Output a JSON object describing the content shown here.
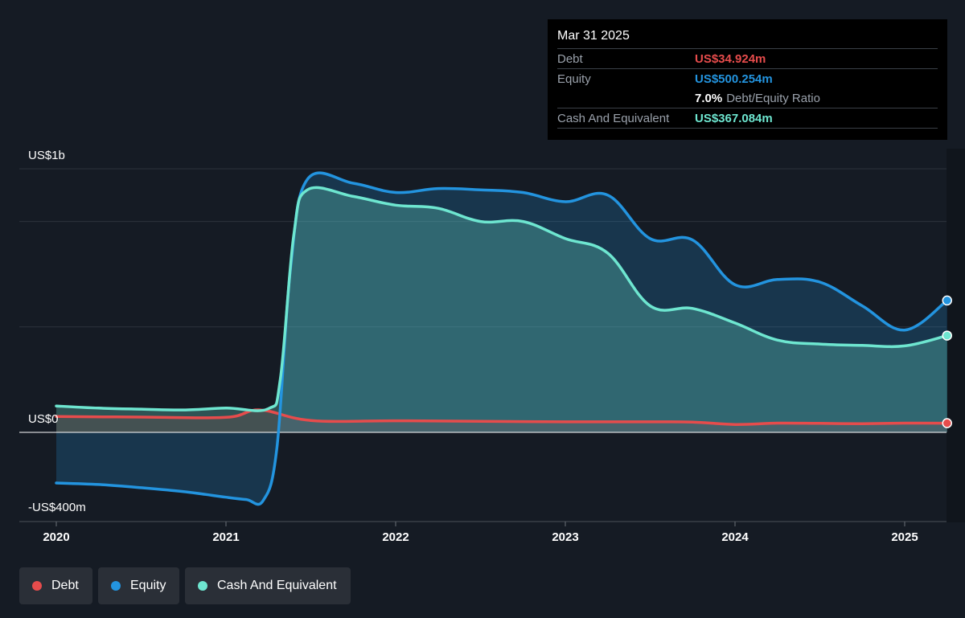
{
  "tooltip": {
    "date": "Mar 31 2025",
    "debt_label": "Debt",
    "debt_value": "US$34.924m",
    "equity_label": "Equity",
    "equity_value": "US$500.254m",
    "ratio_value": "7.0%",
    "ratio_label": "Debt/Equity Ratio",
    "cash_label": "Cash And Equivalent",
    "cash_value": "US$367.084m"
  },
  "legend": [
    {
      "label": "Debt",
      "color": "#e64c4c"
    },
    {
      "label": "Equity",
      "color": "#2394df"
    },
    {
      "label": "Cash And Equivalent",
      "color": "#6ee6d0"
    }
  ],
  "chart_data": {
    "type": "area",
    "y_tick_labels": [
      "US$1b",
      "US$0",
      "-US$400m"
    ],
    "ylim": [
      -400,
      1000
    ],
    "x_ticks": [
      2020,
      2021,
      2022,
      2023,
      2024,
      2025
    ],
    "x_tick_labels": [
      "2020",
      "2021",
      "2022",
      "2023",
      "2024",
      "2025"
    ],
    "xlim": [
      2019.8,
      2025.25
    ],
    "grid": true,
    "series": [
      {
        "name": "Debt",
        "color": "#e64c4c",
        "points": [
          [
            2020.0,
            60
          ],
          [
            2020.5,
            58
          ],
          [
            2021.0,
            57
          ],
          [
            2021.2,
            85
          ],
          [
            2021.5,
            45
          ],
          [
            2022.0,
            44
          ],
          [
            2022.5,
            42
          ],
          [
            2023.0,
            40
          ],
          [
            2023.5,
            40
          ],
          [
            2023.75,
            39
          ],
          [
            2024.0,
            30
          ],
          [
            2024.25,
            35
          ],
          [
            2024.5,
            34
          ],
          [
            2024.75,
            33
          ],
          [
            2025.0,
            35
          ],
          [
            2025.25,
            34.9
          ]
        ]
      },
      {
        "name": "Equity",
        "color": "#2394df",
        "points": [
          [
            2020.0,
            -192
          ],
          [
            2020.25,
            -198
          ],
          [
            2020.5,
            -210
          ],
          [
            2020.75,
            -225
          ],
          [
            2021.0,
            -246
          ],
          [
            2021.12,
            -255
          ],
          [
            2021.22,
            -258
          ],
          [
            2021.3,
            -60
          ],
          [
            2021.38,
            620
          ],
          [
            2021.48,
            960
          ],
          [
            2021.75,
            945
          ],
          [
            2022.0,
            910
          ],
          [
            2022.25,
            925
          ],
          [
            2022.5,
            920
          ],
          [
            2022.75,
            910
          ],
          [
            2023.0,
            875
          ],
          [
            2023.25,
            900
          ],
          [
            2023.5,
            735
          ],
          [
            2023.75,
            730
          ],
          [
            2024.0,
            560
          ],
          [
            2024.25,
            580
          ],
          [
            2024.5,
            570
          ],
          [
            2024.75,
            480
          ],
          [
            2025.0,
            388
          ],
          [
            2025.25,
            500.3
          ]
        ]
      },
      {
        "name": "Cash And Equivalent",
        "color": "#6ee6d0",
        "points": [
          [
            2020.0,
            100
          ],
          [
            2020.25,
            92
          ],
          [
            2020.5,
            88
          ],
          [
            2020.75,
            85
          ],
          [
            2021.0,
            92
          ],
          [
            2021.25,
            90
          ],
          [
            2021.32,
            200
          ],
          [
            2021.4,
            750
          ],
          [
            2021.48,
            920
          ],
          [
            2021.75,
            895
          ],
          [
            2022.0,
            862
          ],
          [
            2022.25,
            850
          ],
          [
            2022.5,
            800
          ],
          [
            2022.75,
            800
          ],
          [
            2023.0,
            735
          ],
          [
            2023.25,
            680
          ],
          [
            2023.5,
            480
          ],
          [
            2023.75,
            470
          ],
          [
            2024.0,
            415
          ],
          [
            2024.25,
            350
          ],
          [
            2024.5,
            335
          ],
          [
            2024.75,
            330
          ],
          [
            2025.0,
            328
          ],
          [
            2025.25,
            367.1
          ]
        ]
      }
    ]
  }
}
